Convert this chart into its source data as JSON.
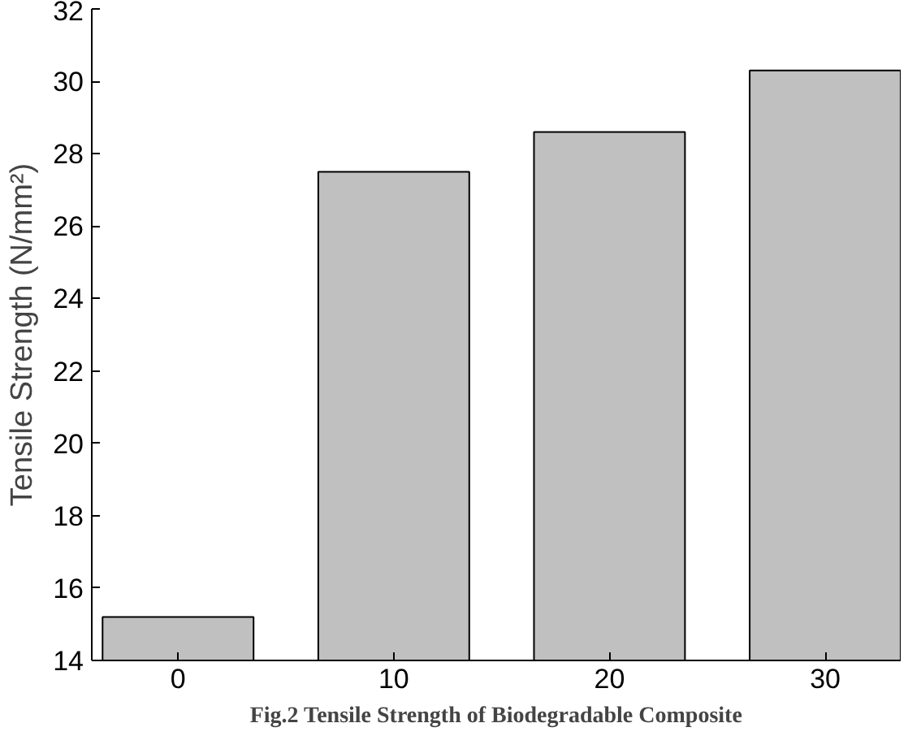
{
  "chart_data": {
    "type": "bar",
    "ylabel": "Tensile Strength (N/mm²)",
    "x": [
      0,
      10,
      20,
      30
    ],
    "values": [
      15.2,
      27.5,
      28.6,
      30.3
    ],
    "color": "#c0c0c0",
    "xlim": [
      -4,
      33.5
    ],
    "xticks": [
      0,
      10,
      20,
      30
    ],
    "ylim": [
      14,
      32
    ],
    "yticks": [
      14,
      16,
      18,
      20,
      22,
      24,
      26,
      28,
      30,
      32
    ],
    "grid": false,
    "annotations": [
      "Fig.2 Tensile Strength of Biodegradable Composite"
    ]
  }
}
